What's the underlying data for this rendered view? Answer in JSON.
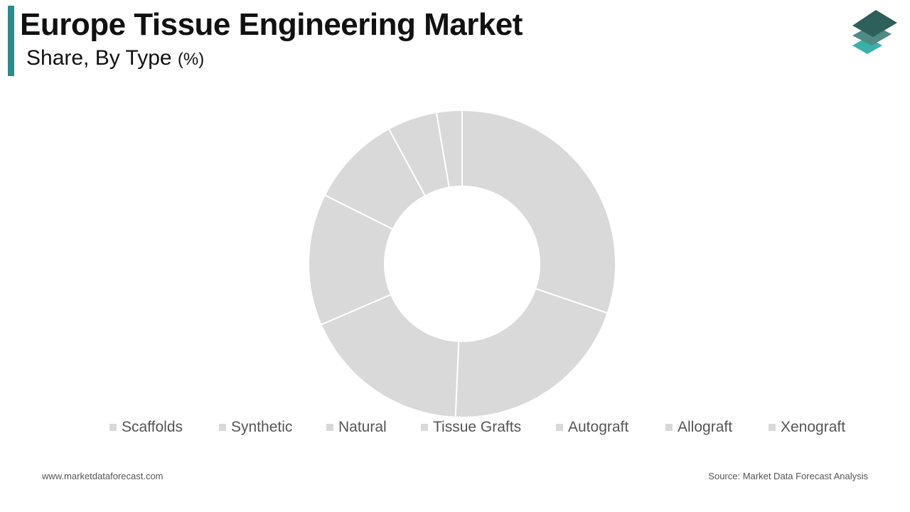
{
  "header": {
    "title": "Europe Tissue Engineering Market",
    "subtitle": "Share, By Type",
    "subtitle_unit": "(%)"
  },
  "logo": {
    "icon": "stacked-layers-logo-icon",
    "colors": [
      "#2f5f5a",
      "#4f8a84",
      "#3ab0a8"
    ]
  },
  "colors": {
    "accent": "#2e8b8b",
    "slice": "#d9d9d9",
    "separator": "#ffffff"
  },
  "chart_data": {
    "type": "pie",
    "donut": true,
    "categories": [
      "Scaffolds",
      "Synthetic",
      "Natural",
      "Tissue Grafts",
      "Autograft",
      "Allograft",
      "Xenograft"
    ],
    "values": [
      30.5,
      20.7,
      18.0,
      14.0,
      9.8,
      5.3,
      2.7
    ],
    "legend_position": "bottom",
    "title": "Europe Tissue Engineering Market",
    "subtitle": "Share, By Type (%)"
  },
  "footer": {
    "website": "www.marketdataforecast.com",
    "source": "Source: Market Data Forecast Analysis"
  }
}
